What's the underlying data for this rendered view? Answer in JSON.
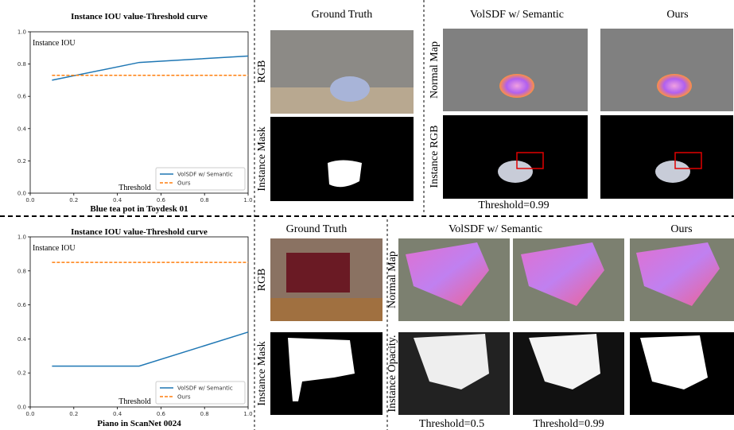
{
  "chart_data": [
    {
      "type": "line",
      "title": "Instance IOU value-Threshold curve",
      "xlabel": "Threshold",
      "ylabel": "Instance IOU",
      "caption": "Blue tea pot in Toydesk 01",
      "xlim": [
        0,
        1
      ],
      "ylim": [
        0,
        1
      ],
      "xticks": [
        {
          "value": 0,
          "label": "0.0"
        },
        0.2,
        0.4,
        0.6,
        0.8,
        {
          "value": 1,
          "label": "1.0"
        }
      ],
      "yticks": [
        {
          "value": 0,
          "label": "0.0"
        },
        0.2,
        0.4,
        0.6,
        0.8,
        {
          "value": 1,
          "label": "1.0"
        }
      ],
      "legend": "lower right",
      "series": [
        {
          "name": "VolSDF w/ Semantic",
          "color": "#1f77b4",
          "linestyle": "solid",
          "x": [
            0.1,
            0.5,
            1.0
          ],
          "values": [
            0.7,
            0.81,
            0.85
          ]
        },
        {
          "name": "Ours",
          "color": "#ff7f0e",
          "linestyle": "dashed",
          "x": [
            0.1,
            1.0
          ],
          "values": [
            0.73,
            0.73
          ]
        }
      ]
    },
    {
      "type": "line",
      "title": "Instance IOU value-Threshold curve",
      "xlabel": "Threshold",
      "ylabel": "Instance IOU",
      "caption": "Piano in ScanNet 0024",
      "xlim": [
        0,
        1
      ],
      "ylim": [
        0,
        1
      ],
      "xticks": [
        {
          "value": 0,
          "label": "0.0"
        },
        0.2,
        0.4,
        0.6,
        0.8,
        {
          "value": 1,
          "label": "1.0"
        }
      ],
      "yticks": [
        {
          "value": 0,
          "label": "0.0"
        },
        0.2,
        0.4,
        0.6,
        0.8,
        {
          "value": 1,
          "label": "1.0"
        }
      ],
      "legend": "lower right",
      "series": [
        {
          "name": "VolSDF w/ Semantic",
          "color": "#1f77b4",
          "linestyle": "solid",
          "x": [
            0.1,
            0.5,
            1.0
          ],
          "values": [
            0.24,
            0.24,
            0.44
          ]
        },
        {
          "name": "Ours",
          "color": "#ff7f0e",
          "linestyle": "dashed",
          "x": [
            0.1,
            1.0
          ],
          "values": [
            0.85,
            0.85
          ]
        }
      ]
    }
  ],
  "panels": {
    "top": {
      "gt_title": "Ground Truth",
      "rgb": "RGB",
      "mask": "Instance Mask",
      "volsdf": "VolSDF w/ Semantic",
      "ours": "Ours",
      "normal": "Normal Map",
      "instance_rgb": "Instance RGB",
      "threshold": "Threshold=0.99"
    },
    "bottom": {
      "gt_title": "Ground Truth",
      "rgb": "RGB",
      "mask": "Instance Mask",
      "volsdf": "VolSDF w/ Semantic",
      "ours": "Ours",
      "normal": "Normal Map",
      "opacity": "Instance Opacity.",
      "threshold_a": "Threshold=0.5",
      "threshold_b": "Threshold=0.99"
    }
  }
}
